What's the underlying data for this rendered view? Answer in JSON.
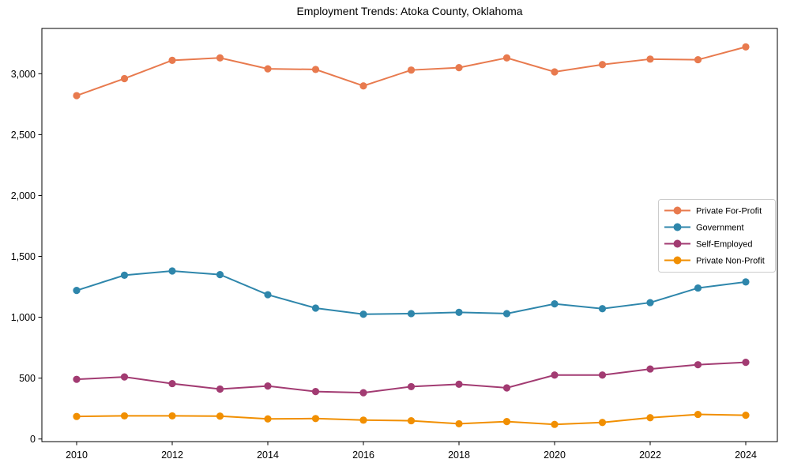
{
  "chart_data": {
    "type": "line",
    "title": "Employment Trends: Atoka County, Oklahoma",
    "xlabel": "",
    "ylabel": "",
    "x": [
      2010,
      2011,
      2012,
      2013,
      2014,
      2015,
      2016,
      2017,
      2018,
      2019,
      2020,
      2021,
      2022,
      2023,
      2024
    ],
    "series": [
      {
        "name": "Private For-Profit",
        "color": "#e87a4e",
        "values": [
          2820,
          2960,
          3110,
          3130,
          3040,
          3035,
          2900,
          3030,
          3050,
          3130,
          3015,
          3075,
          3120,
          3115,
          3220
        ]
      },
      {
        "name": "Government",
        "color": "#2e86ab",
        "values": [
          1220,
          1345,
          1380,
          1350,
          1185,
          1075,
          1025,
          1030,
          1040,
          1030,
          1110,
          1070,
          1120,
          1240,
          1290
        ]
      },
      {
        "name": "Self-Employed",
        "color": "#a23b72",
        "values": [
          490,
          510,
          455,
          410,
          435,
          390,
          380,
          430,
          450,
          420,
          525,
          525,
          575,
          610,
          630
        ]
      },
      {
        "name": "Private Non-Profit",
        "color": "#f18f01",
        "values": [
          185,
          190,
          190,
          188,
          165,
          168,
          155,
          150,
          125,
          143,
          120,
          136,
          175,
          202,
          195
        ]
      }
    ],
    "xticks": [
      2010,
      2012,
      2014,
      2016,
      2018,
      2020,
      2022,
      2024
    ],
    "yticks": [
      0,
      500,
      1000,
      1500,
      2000,
      2500,
      3000
    ],
    "ytick_labels": [
      "0",
      "500",
      "1,000",
      "1,500",
      "2,000",
      "2,500",
      "3,000"
    ],
    "ylim": [
      0,
      3390
    ],
    "grid": false,
    "legend_position": "center right",
    "marker": "circle"
  }
}
